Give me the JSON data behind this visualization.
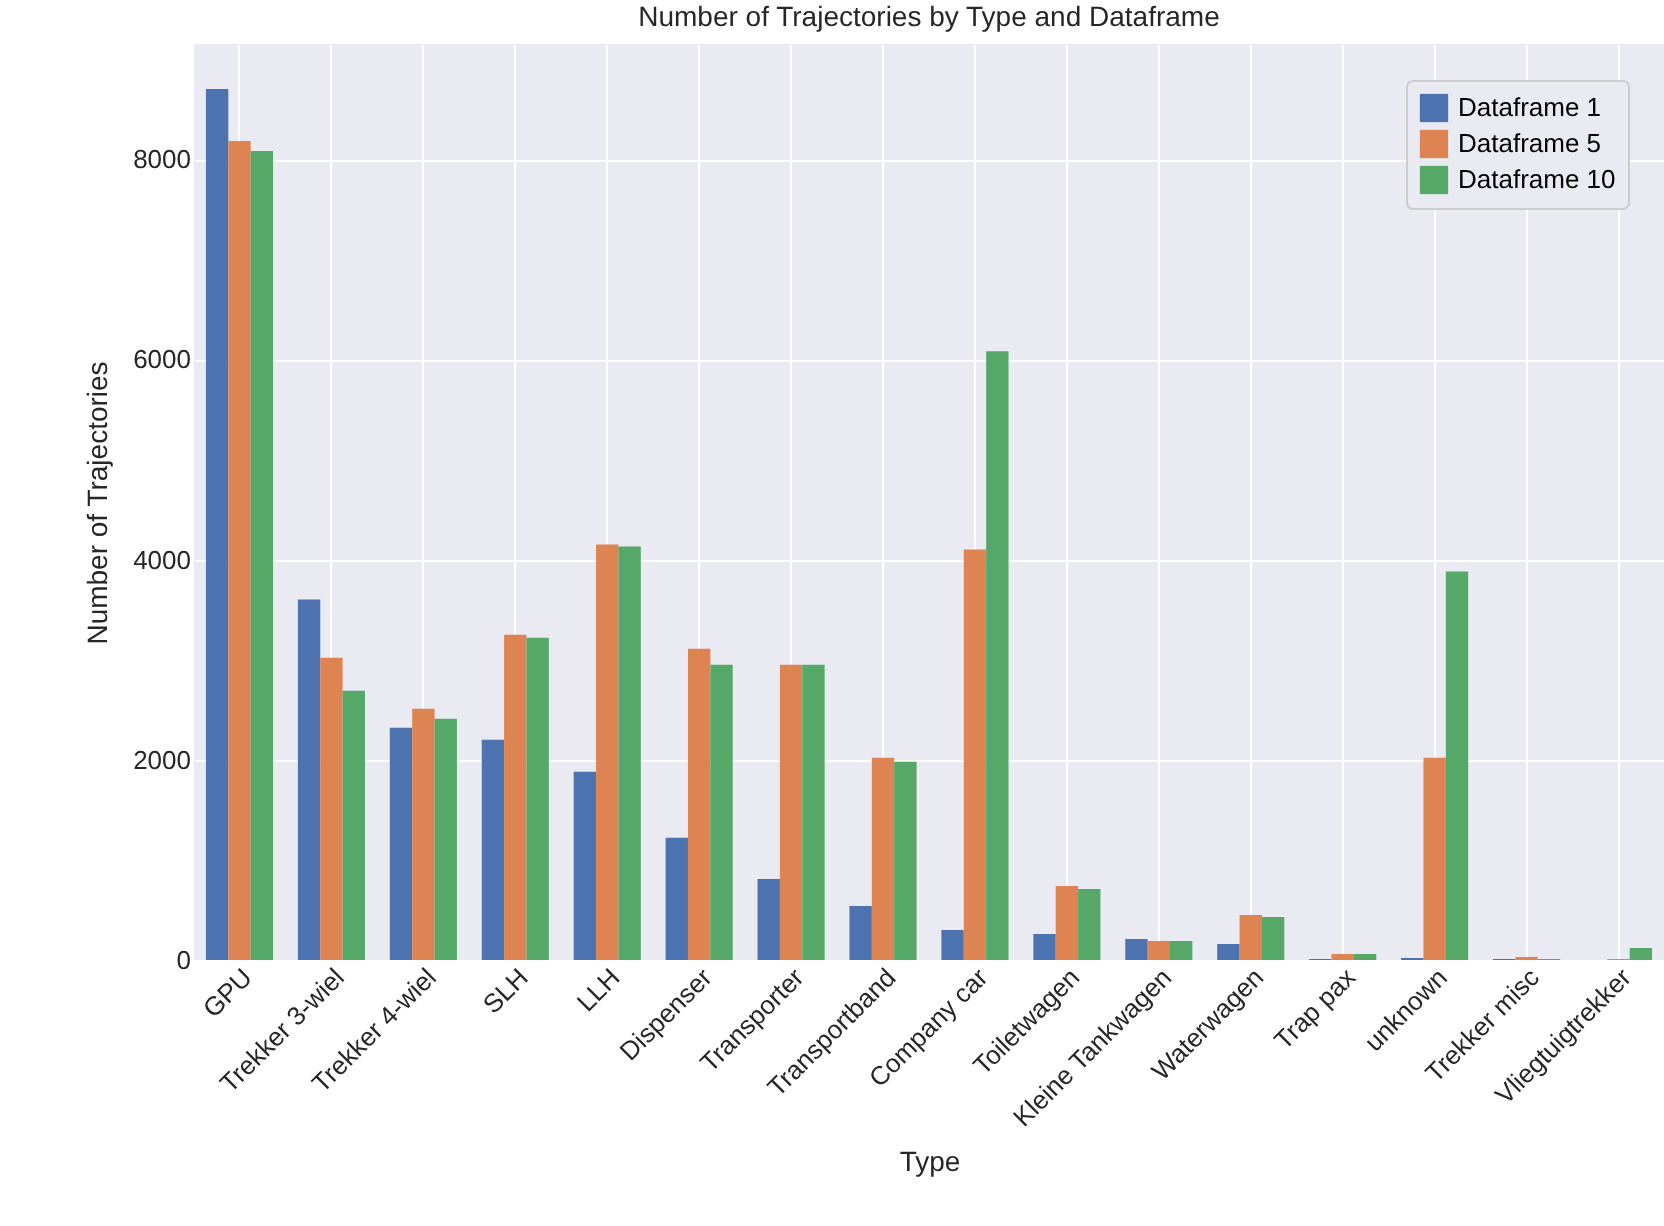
{
  "chart_data": {
    "type": "bar",
    "title": "Number of Trajectories by Type and Dataframe",
    "xlabel": "Type",
    "ylabel": "Number of Trajectories",
    "categories": [
      "GPU",
      "Trekker 3-wiel",
      "Trekker 4-wiel",
      "SLH",
      "LLH",
      "Dispenser",
      "Transporter",
      "Transportband",
      "Company car",
      "Toiletwagen",
      "Kleine Tankwagen",
      "Waterwagen",
      "Trap pax",
      "unknown",
      "Trekker misc",
      "Vliegtuigtrekker"
    ],
    "series": [
      {
        "name": "Dataframe 1",
        "color": "#4c72b0",
        "values": [
          8700,
          3600,
          2320,
          2200,
          1880,
          1220,
          810,
          540,
          300,
          260,
          210,
          160,
          10,
          20,
          10,
          0
        ]
      },
      {
        "name": "Dataframe 5",
        "color": "#dd8452",
        "values": [
          8180,
          3020,
          2510,
          3250,
          4150,
          3110,
          2950,
          2020,
          4100,
          740,
          190,
          450,
          60,
          2020,
          30,
          10
        ]
      },
      {
        "name": "Dataframe 10",
        "color": "#55a868",
        "values": [
          8080,
          2690,
          2410,
          3220,
          4130,
          2950,
          2950,
          1980,
          6080,
          710,
          190,
          430,
          60,
          3880,
          10,
          120
        ]
      }
    ],
    "ylim": [
      0,
      9150
    ],
    "yticks": [
      0,
      2000,
      4000,
      6000,
      8000
    ],
    "grid": true,
    "legend": "top right"
  }
}
